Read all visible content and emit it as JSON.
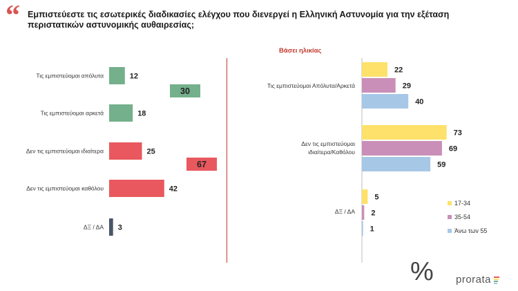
{
  "header": {
    "quote_mark": "“",
    "title": "Εμπιστεύεστε τις εσωτερικές διαδικασίες ελέγχου που διενεργεί η Ελληνική Αστυνομία για την εξέταση περιστατικών αστυνομικής αυθαιρεσίας;"
  },
  "chart_data": [
    {
      "type": "bar",
      "orientation": "horizontal",
      "categories": [
        "Τις εμπιστεύομαι απόλυτα",
        "Τις εμπιστεύομαι αρκετά",
        "Δεν τις εμπιστεύομαι ιδιαίτερα",
        "Δεν τις εμπιστεύομαι καθόλου",
        "ΔΞ / ΔΑ"
      ],
      "values": [
        12,
        18,
        25,
        42,
        3
      ],
      "colors": [
        "#74b08c",
        "#74b08c",
        "#e8585e",
        "#e8585e",
        "#4a5568"
      ],
      "combined": [
        {
          "value": 30,
          "color": "#74b08c",
          "after_index": 0
        },
        {
          "value": 67,
          "color": "#e8585e",
          "after_index": 2
        }
      ]
    },
    {
      "type": "bar",
      "orientation": "horizontal",
      "title": "Βάσει ηλικίας",
      "categories": [
        "Τις εμπιστεύομαι Απόλυτα/Αρκετά",
        "Δεν τις εμπιστεύομαι ιδιαίτερα/Καθόλου",
        "ΔΞ / ΔΑ"
      ],
      "series": [
        {
          "name": "17-34",
          "color": "#fde16a",
          "values": [
            22,
            73,
            5
          ]
        },
        {
          "name": "35-54",
          "color": "#c98fb8",
          "values": [
            29,
            69,
            2
          ]
        },
        {
          "name": "Άνω των 55",
          "color": "#a7c7e7",
          "values": [
            40,
            59,
            1
          ]
        }
      ],
      "legend_position": "bottom-right"
    }
  ],
  "logo": {
    "symbol": "%",
    "text": "prorata",
    "colors": [
      "#e8585e",
      "#fde16a",
      "#74b08c",
      "#a7c7e7"
    ]
  }
}
